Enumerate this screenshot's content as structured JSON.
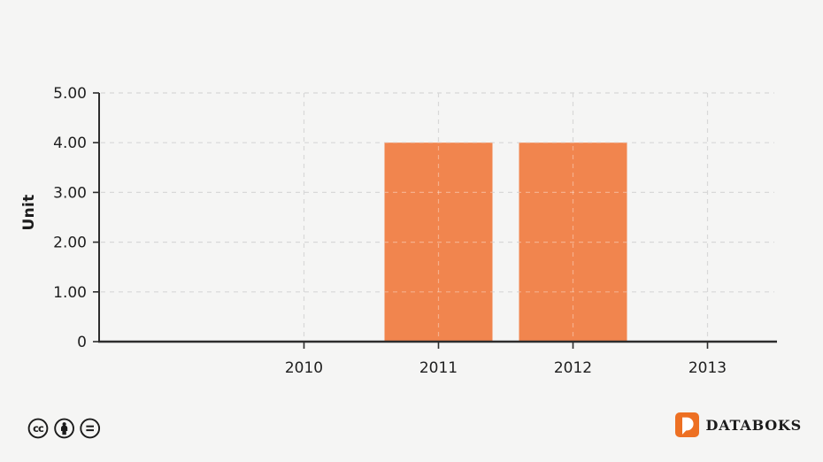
{
  "background_color": "#f5f5f4",
  "chart_data": {
    "type": "bar",
    "categories": [
      "2010",
      "2011",
      "2012",
      "2013"
    ],
    "values": [
      0,
      4,
      4,
      0
    ],
    "title": "",
    "xlabel": "",
    "ylabel": "Unit",
    "ylim": [
      0,
      5
    ],
    "y_tick_labels": [
      "5.00",
      "4.00",
      "3.00",
      "2.00",
      "1.00",
      "0"
    ],
    "grid": "dashed",
    "legend": "none",
    "bar_color": "#F1854E",
    "grid_color": "#d8d8d8",
    "axis_color": "#2d2d2d",
    "text_color": "#1f1f1f"
  },
  "footer": {
    "license_icons": [
      {
        "name": "cc-icon",
        "glyph": "cc"
      },
      {
        "name": "cc-by-icon",
        "glyph": "person"
      },
      {
        "name": "cc-nd-icon",
        "glyph": "equals"
      }
    ],
    "brand": {
      "text": "DATABOKS",
      "icon_letter": "D",
      "icon_color": "#ED7023",
      "text_color": "#1c1c1c"
    }
  }
}
